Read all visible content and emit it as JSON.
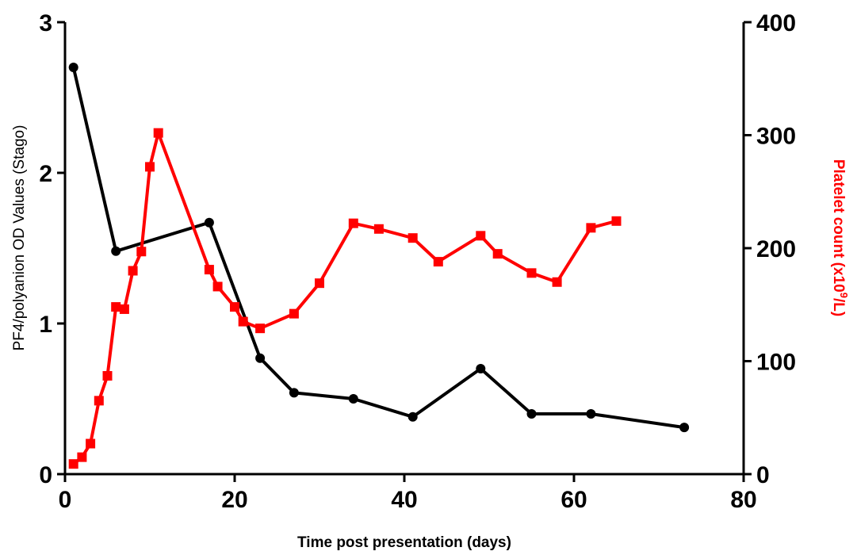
{
  "chart_data": {
    "type": "line",
    "xlabel": "Time post presentation (days)",
    "ylabel_left": "PF4/polyanion OD Values (Stago)",
    "ylabel_right_prefix": "Platelet count (x10",
    "ylabel_right_sup": "9",
    "ylabel_right_suffix": "/L)",
    "xlim": [
      0,
      80
    ],
    "ylim_left": [
      0,
      3
    ],
    "ylim_right": [
      0,
      400
    ],
    "x_ticks": [
      0,
      20,
      40,
      60,
      80
    ],
    "y_left_ticks": [
      0,
      1,
      2,
      3
    ],
    "y_right_ticks": [
      0,
      100,
      200,
      300,
      400
    ],
    "grid": false,
    "series": [
      {
        "axis": "left",
        "color": "#000000",
        "marker": "circle",
        "x": [
          1,
          6,
          17,
          23,
          27,
          34,
          41,
          49,
          55,
          62,
          73
        ],
        "y": [
          2.7,
          1.48,
          1.67,
          0.77,
          0.54,
          0.5,
          0.38,
          0.7,
          0.4,
          0.4,
          0.31
        ]
      },
      {
        "axis": "right",
        "color": "#ff0000",
        "marker": "square",
        "x": [
          1,
          2,
          3,
          4,
          5,
          6,
          7,
          8,
          9,
          10,
          11,
          17,
          18,
          20,
          21,
          23,
          27,
          30,
          34,
          37,
          41,
          44,
          49,
          51,
          55,
          58,
          62,
          65
        ],
        "y": [
          9,
          15,
          27,
          65,
          87,
          148,
          146,
          180,
          197,
          272,
          302,
          181,
          166,
          148,
          135,
          129,
          142,
          169,
          222,
          217,
          209,
          188,
          211,
          195,
          178,
          170,
          218,
          224
        ]
      }
    ]
  }
}
